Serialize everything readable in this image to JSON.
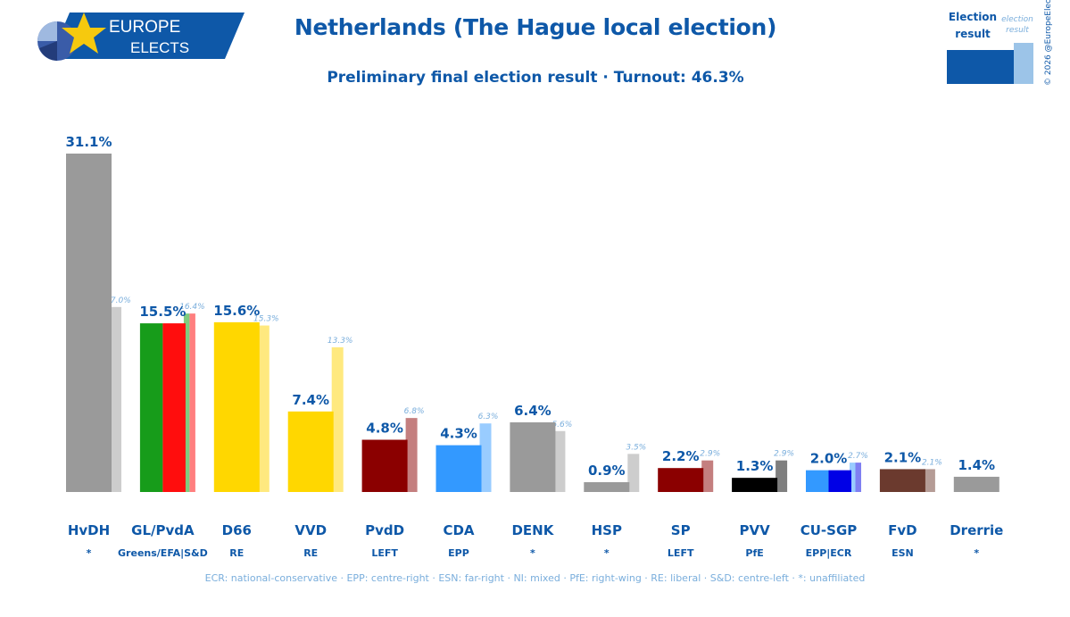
{
  "brand": {
    "line1": "EUROPE",
    "line2": "ELECTS"
  },
  "title": "Netherlands (The Hague local election)",
  "subtitle": "Preliminary final election result · Turnout: 46.3%",
  "legend_key": {
    "current": "Election result",
    "previous": "election result"
  },
  "copyright": "© 2026 @EuropeElects",
  "footnote": "ECR: national-conservative · EPP: centre-right · ESN: far-right · NI: mixed · PfE: right-wing · RE: liberal · S&D: centre-left · *: unaffiliated",
  "colors": {
    "brand": "#0e58a8",
    "previous_label": "#7aaedc"
  },
  "chart_data": {
    "type": "bar",
    "ylim": [
      0,
      31.1
    ],
    "categories": [
      "HvDH",
      "GL/PvdA",
      "D66",
      "VVD",
      "PvdD",
      "CDA",
      "DENK",
      "HSP",
      "SP",
      "PVV",
      "CU-SGP",
      "FvD",
      "Drerrie"
    ],
    "groups": [
      "*",
      "Greens/EFA|S&D",
      "RE",
      "RE",
      "LEFT",
      "EPP",
      "*",
      "*",
      "LEFT",
      "PfE",
      "EPP|ECR",
      "ESN",
      "*"
    ],
    "series": [
      {
        "values": [
          31.1,
          15.5,
          15.6,
          7.4,
          4.8,
          4.3,
          6.4,
          0.9,
          2.2,
          1.3,
          2.0,
          2.1,
          1.4
        ],
        "labels": [
          "31.1%",
          "15.5%",
          "15.6%",
          "7.4%",
          "4.8%",
          "4.3%",
          "6.4%",
          "0.9%",
          "2.2%",
          "1.3%",
          "2.0%",
          "2.1%",
          "1.4%"
        ]
      },
      {
        "values": [
          17.0,
          16.4,
          15.3,
          13.3,
          6.8,
          6.3,
          5.6,
          3.5,
          2.9,
          2.9,
          2.7,
          2.1,
          null
        ],
        "labels": [
          "17.0%",
          "16.4%",
          "15.3%",
          "13.3%",
          "6.8%",
          "6.3%",
          "5.6%",
          "3.5%",
          "2.9%",
          "2.9%",
          "2.7%",
          "2.1%",
          null
        ]
      }
    ],
    "bar_colors": [
      [
        "#9a9a9a"
      ],
      [
        "#179c1a",
        "#ff0d0d"
      ],
      [
        "#ffd700"
      ],
      [
        "#ffd700"
      ],
      [
        "#8b0000"
      ],
      [
        "#3399ff"
      ],
      [
        "#9a9a9a"
      ],
      [
        "#9a9a9a"
      ],
      [
        "#8b0000"
      ],
      [
        "#000000"
      ],
      [
        "#3399ff",
        "#0000e6"
      ],
      [
        "#6b3a2e"
      ],
      [
        "#9a9a9a"
      ]
    ],
    "previous_colors": [
      [
        "#cdcdcd"
      ],
      [
        "#7fcc7f",
        "#ff7f7f"
      ],
      [
        "#ffe97f"
      ],
      [
        "#ffe97f"
      ],
      [
        "#c47f7f"
      ],
      [
        "#99ccff"
      ],
      [
        "#cdcdcd"
      ],
      [
        "#cdcdcd"
      ],
      [
        "#c47f7f"
      ],
      [
        "#7f7f7f"
      ],
      [
        "#99ccff",
        "#7f7ff2"
      ],
      [
        "#b59c96"
      ],
      []
    ]
  }
}
